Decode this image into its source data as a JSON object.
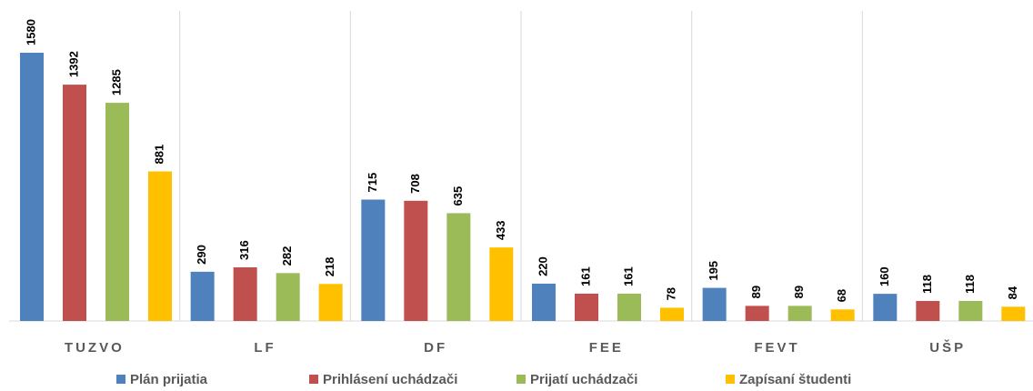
{
  "chart_data": {
    "type": "bar",
    "categories": [
      "TUZVO",
      "LF",
      "DF",
      "FEE",
      "FEVT",
      "UŠP"
    ],
    "series": [
      {
        "name": "Plán prijatia",
        "color": "#4f81bd",
        "values": [
          1580,
          290,
          715,
          220,
          195,
          160
        ]
      },
      {
        "name": "Prihlásení uchádzači",
        "color": "#c0504d",
        "values": [
          1392,
          316,
          708,
          161,
          89,
          118
        ]
      },
      {
        "name": "Prijatí uchádzači",
        "color": "#9bbb59",
        "values": [
          1285,
          282,
          635,
          161,
          89,
          118
        ]
      },
      {
        "name": "Zapísaní študenti",
        "color": "#ffc000",
        "values": [
          881,
          218,
          433,
          78,
          68,
          84
        ]
      }
    ],
    "legend": "bottom"
  }
}
